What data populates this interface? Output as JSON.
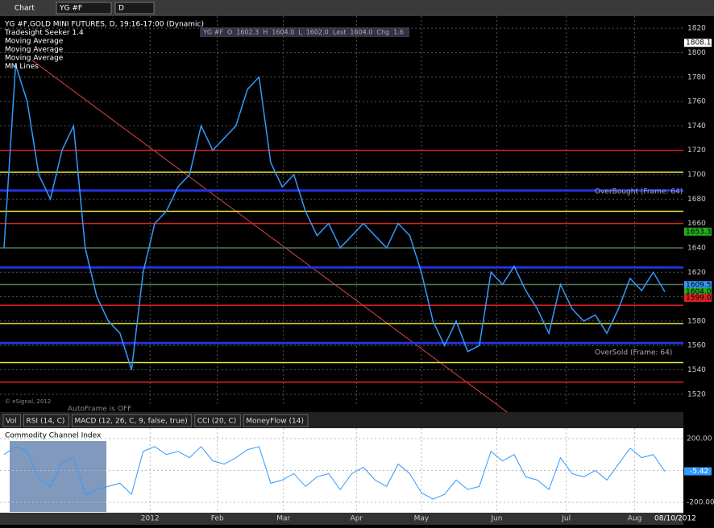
{
  "toolbar": {
    "label": "Chart",
    "symbol": "YG #F",
    "interval": "D"
  },
  "quote_bar": [
    "YG #F",
    "O",
    "1602.3",
    "H",
    "1604.0",
    "L",
    "1602.0",
    "Last",
    "1604.0",
    "Chg",
    "1.6"
  ],
  "legend": [
    "YG #F,GOLD MINI FUTURES, D, 19:16-17:00 (Dynamic)",
    "Tradesight Seeker 1.4",
    "Moving Average",
    "Moving Average",
    "Moving Average",
    "MM Lines"
  ],
  "annotations": {
    "overbought": "OverBought (Frame: 64)",
    "oversold": "OverSold (Frame: 64)",
    "autoframe": "AutoFrame is OFF",
    "copyright": "© eSignal, 2012"
  },
  "price_chart": {
    "ylim": [
      1510,
      1830
    ],
    "yticks": [
      1520,
      1540,
      1560,
      1580,
      1600,
      1620,
      1640,
      1660,
      1680,
      1700,
      1720,
      1740,
      1760,
      1780,
      1800,
      1820
    ],
    "xlim": [
      0,
      57
    ],
    "xticks": [
      {
        "value": 12.6,
        "label": "2012"
      },
      {
        "value": 18.4,
        "label": "Feb"
      },
      {
        "value": 24.1,
        "label": "Mar"
      },
      {
        "value": 30.4,
        "label": "Apr"
      },
      {
        "value": 36,
        "label": "May"
      },
      {
        "value": 42.5,
        "label": "Jun"
      },
      {
        "value": 48.5,
        "label": "Jul"
      },
      {
        "value": 54.4,
        "label": "Aug"
      }
    ],
    "close": [
      1640,
      1790,
      1760,
      1700,
      1680,
      1720,
      1740,
      1640,
      1600,
      1580,
      1570,
      1540,
      1620,
      1660,
      1670,
      1690,
      1700,
      1740,
      1720,
      1730,
      1740,
      1770,
      1780,
      1710,
      1690,
      1700,
      1670,
      1650,
      1660,
      1640,
      1650,
      1660,
      1650,
      1640,
      1660,
      1650,
      1620,
      1580,
      1560,
      1580,
      1555,
      1560,
      1620,
      1610,
      1625,
      1605,
      1590,
      1570,
      1610,
      1590,
      1580,
      1585,
      1570,
      1590,
      1615,
      1605,
      1620,
      1604
    ],
    "close_color": "#3399ff",
    "levels": [
      {
        "value": 1720,
        "color": "#dd2222"
      },
      {
        "value": 1702,
        "color": "#e8e840"
      },
      {
        "value": 1687,
        "color": "#2233dd"
      },
      {
        "value": 1670,
        "color": "#e8e840"
      },
      {
        "value": 1660,
        "color": "#dd2222"
      },
      {
        "value": 1640,
        "color": "#557755"
      },
      {
        "value": 1624,
        "color": "#2233dd"
      },
      {
        "value": 1610,
        "color": "#557755"
      },
      {
        "value": 1593,
        "color": "#dd2222"
      },
      {
        "value": 1578,
        "color": "#e8e840"
      },
      {
        "value": 1562,
        "color": "#2233dd"
      },
      {
        "value": 1546,
        "color": "#e8e840"
      },
      {
        "value": 1530,
        "color": "#dd2222"
      }
    ],
    "price_labels": [
      {
        "value": 1808.1,
        "label": "1808.1",
        "color": "#ffffff"
      },
      {
        "value": 1653.3,
        "label": "1653.3",
        "color": "#22aa22"
      },
      {
        "value": 1609.5,
        "label": "1609.5",
        "color": "#3399ff"
      },
      {
        "value": 1604,
        "label": "1604.0",
        "color": "#22aa22"
      },
      {
        "value": 1599,
        "label": "1599.0",
        "color": "#dd2222"
      }
    ]
  },
  "tabs": [
    "Vol",
    "RSI (14, C)",
    "MACD (12, 26, C, 9, false, true)",
    "CCI (20, C)",
    "MoneyFlow (14)"
  ],
  "cci": {
    "title": "Commodity Channel Index",
    "ylim": [
      -240,
      240
    ],
    "yticks": [
      {
        "value": 200,
        "label": "200.00"
      },
      {
        "value": 0,
        "label": "0.00"
      },
      {
        "value": -200,
        "label": "-200.00"
      }
    ],
    "values": [
      100,
      150,
      120,
      -50,
      -100,
      50,
      80,
      -150,
      -120,
      -100,
      -80,
      -150,
      120,
      150,
      100,
      120,
      80,
      150,
      60,
      40,
      80,
      130,
      150,
      -80,
      -60,
      -20,
      -100,
      -40,
      -20,
      -120,
      -20,
      20,
      -60,
      -100,
      40,
      -20,
      -140,
      -180,
      -150,
      -60,
      -120,
      -100,
      120,
      60,
      100,
      -40,
      -60,
      -120,
      80,
      -20,
      -40,
      0,
      -60,
      40,
      140,
      80,
      100,
      -5.42
    ],
    "last_label": "-5.42",
    "color": "#3399ff"
  },
  "date_label": "08/10/2012"
}
